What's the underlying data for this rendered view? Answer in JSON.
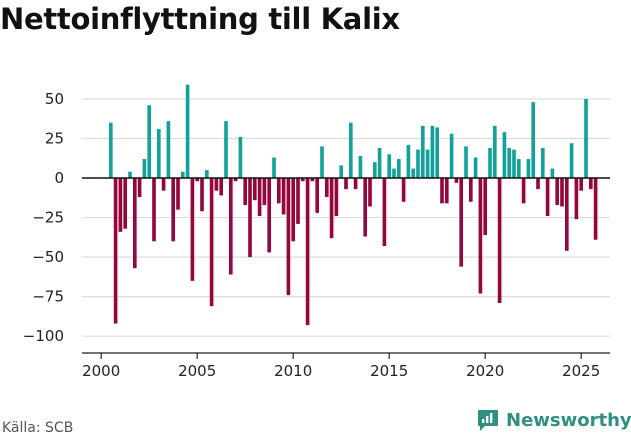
{
  "header": {
    "title": "Nettoinflyttning till Kalix"
  },
  "footer": {
    "source": "Källa: SCB",
    "brand": "Newsworthy"
  },
  "colors": {
    "positive": "#13a19a",
    "negative": "#95063e",
    "grid": "#dddddd",
    "brand": "#2e8f83"
  },
  "chart_data": {
    "type": "bar",
    "title": "Nettoinflyttning till Kalix",
    "xlabel": "",
    "ylabel": "",
    "xlim": [
      1999,
      2026.5
    ],
    "ylim": [
      -110,
      62
    ],
    "y_ticks": [
      50,
      25,
      0,
      -25,
      -50,
      -75,
      -100
    ],
    "y_tick_labels": [
      "50",
      "25",
      "0",
      "−25",
      "−50",
      "−75",
      "−100"
    ],
    "x_ticks": [
      2000,
      2005,
      2010,
      2015,
      2020,
      2025
    ],
    "x_tick_labels": [
      "2000",
      "2005",
      "2010",
      "2015",
      "2020",
      "2025"
    ],
    "bar_width": 0.19,
    "x": [
      2000.5,
      2000.75,
      2001,
      2001.25,
      2001.5,
      2001.75,
      2002,
      2002.25,
      2002.5,
      2002.75,
      2003,
      2003.25,
      2003.5,
      2003.75,
      2004,
      2004.25,
      2004.5,
      2004.75,
      2005,
      2005.25,
      2005.5,
      2005.75,
      2006,
      2006.25,
      2006.5,
      2006.75,
      2007,
      2007.25,
      2007.5,
      2007.75,
      2008,
      2008.25,
      2008.5,
      2008.75,
      2009,
      2009.25,
      2009.5,
      2009.75,
      2010,
      2010.25,
      2010.5,
      2010.75,
      2011,
      2011.25,
      2011.5,
      2011.75,
      2012,
      2012.25,
      2012.5,
      2012.75,
      2013,
      2013.25,
      2013.5,
      2013.75,
      2014,
      2014.25,
      2014.5,
      2014.75,
      2015,
      2015.25,
      2015.5,
      2015.75,
      2016,
      2016.25,
      2016.5,
      2016.75,
      2017,
      2017.25,
      2017.5,
      2017.75,
      2018,
      2018.25,
      2018.5,
      2018.75,
      2019,
      2019.25,
      2019.5,
      2019.75,
      2020,
      2020.25,
      2020.5,
      2020.75,
      2021,
      2021.25,
      2021.5,
      2021.75,
      2022,
      2022.25,
      2022.5,
      2022.75,
      2023,
      2023.25,
      2023.5,
      2023.75,
      2024,
      2024.25,
      2024.5,
      2024.75,
      2025,
      2025.25,
      2025.5,
      2025.75
    ],
    "values": [
      35,
      -92,
      -34,
      -32,
      4,
      -57,
      -12,
      12,
      46,
      -40,
      31,
      -8,
      36,
      -40,
      -20,
      4,
      59,
      -65,
      -2,
      -21,
      5,
      -81,
      -8,
      -11,
      36,
      -61,
      -2,
      26,
      -17,
      -50,
      -14,
      -24,
      -17,
      -47,
      13,
      -16,
      -23,
      -74,
      -40,
      -29,
      -2,
      -93,
      -2,
      -22,
      20,
      -12,
      -38,
      -24,
      8,
      -7,
      35,
      -7,
      14,
      -37,
      -18,
      10,
      19,
      -43,
      15,
      6,
      12,
      -15,
      21,
      6,
      18,
      33,
      18,
      33,
      32,
      -16,
      -16,
      28,
      -3,
      -56,
      20,
      -15,
      13,
      -73,
      -36,
      19,
      33,
      -79,
      29,
      19,
      18,
      12,
      -16,
      12,
      48,
      -7,
      19,
      -24,
      6,
      -17,
      -18,
      -46,
      22,
      -26,
      -8,
      50,
      -7,
      -39
    ]
  }
}
